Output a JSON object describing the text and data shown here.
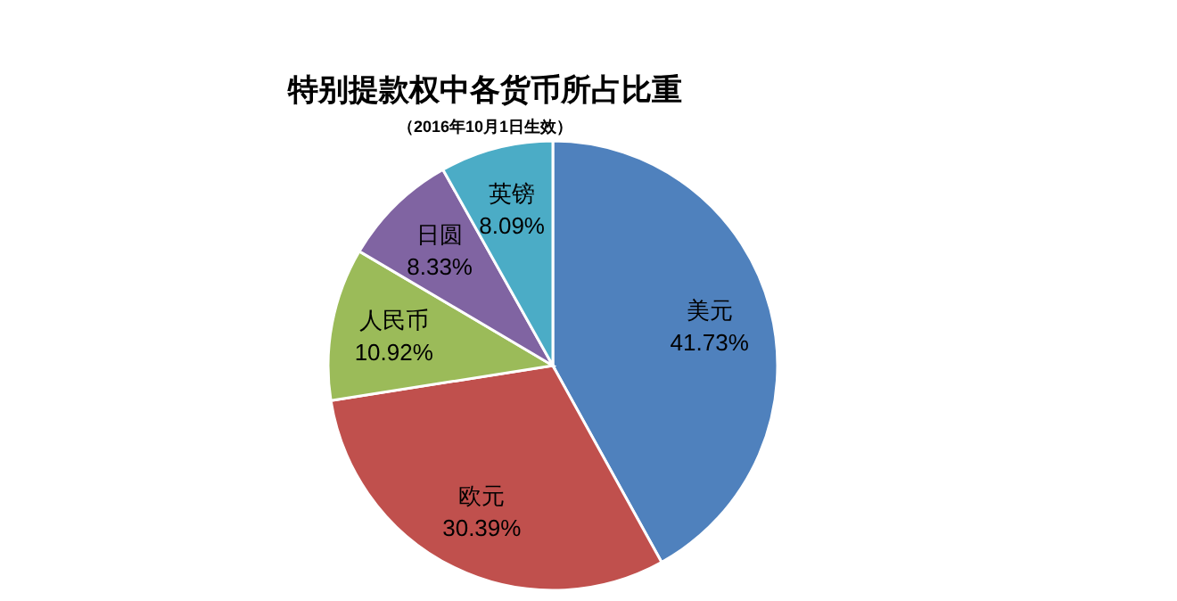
{
  "chart_data": {
    "type": "pie",
    "title": "特别提款权中各货币所占比重",
    "subtitle": "（2016年10月1日生效）",
    "categories": [
      "美元",
      "欧元",
      "人民币",
      "日圆",
      "英镑"
    ],
    "values": [
      41.73,
      30.39,
      10.92,
      8.33,
      8.09
    ],
    "value_labels": [
      "41.73%",
      "30.39%",
      "10.92%",
      "8.33%",
      "8.09%"
    ],
    "colors": [
      "#4f81bd",
      "#c0504d",
      "#9bbb59",
      "#8064a2",
      "#4bacc6"
    ]
  }
}
